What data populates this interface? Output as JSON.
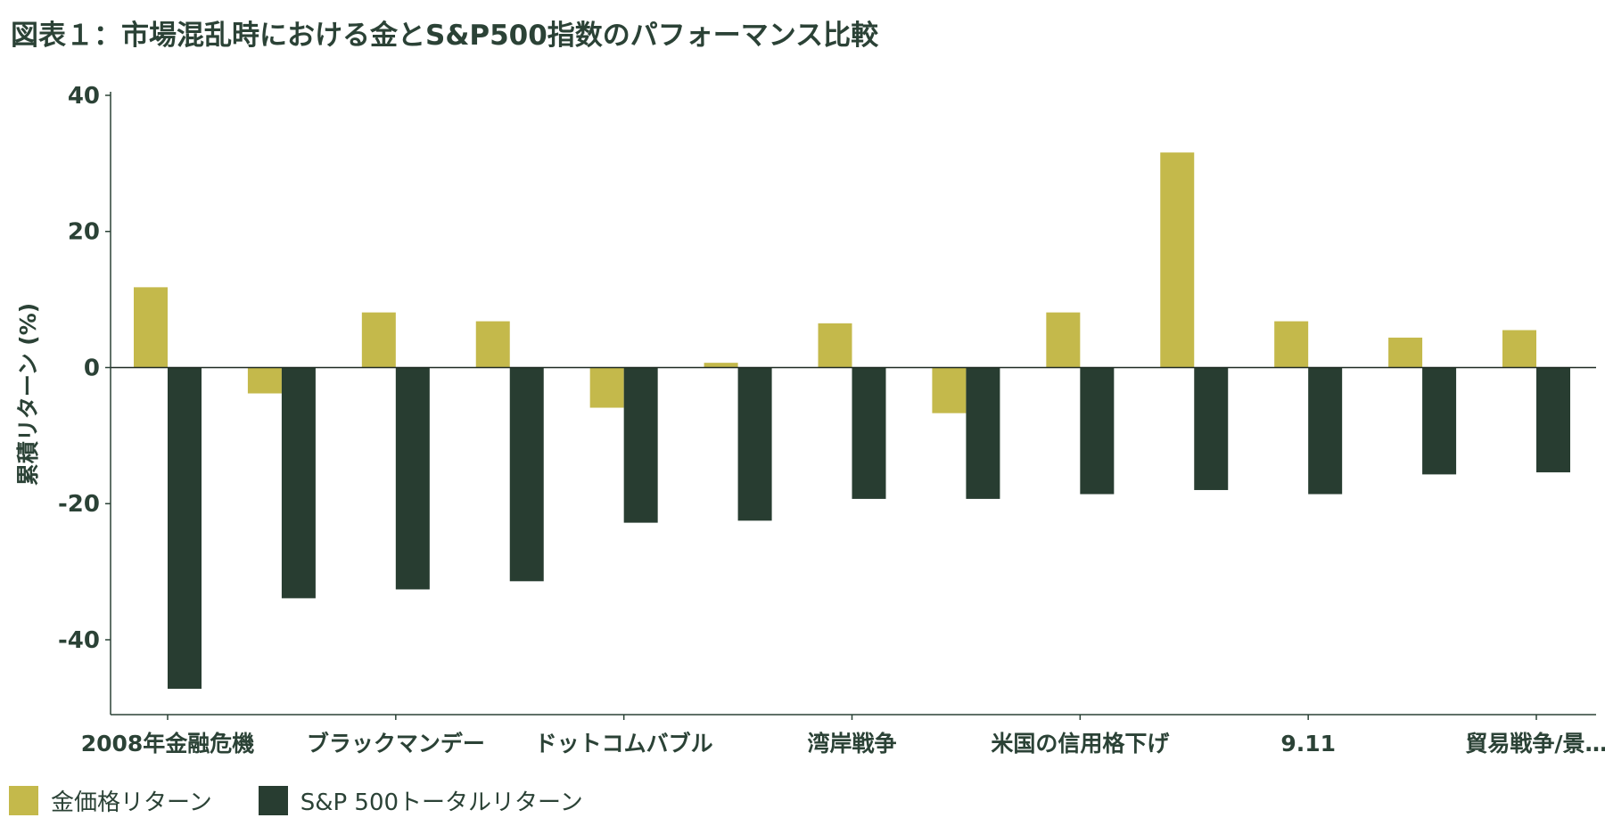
{
  "chart_data": {
    "type": "bar",
    "title": "図表１：市場混乱時における金とS&P500指数のパフォーマンス比較",
    "xlabel": "",
    "ylabel": "累積リターン (%)",
    "ylim": [
      -51,
      40
    ],
    "yticks": [
      40,
      20,
      0,
      -20,
      -40
    ],
    "categories": [
      "2008年金融危機",
      "",
      "ブラックマンデー",
      "",
      "ドットコムバブル",
      "",
      "湾岸戦争",
      "",
      "米国の信用格下げ",
      "",
      "9.11",
      "",
      "貿易戦争/景…"
    ],
    "series": [
      {
        "name": "金価格リターン",
        "color": "#c4b94b",
        "values": [
          11.8,
          -3.8,
          8.1,
          6.8,
          -5.9,
          0.7,
          6.5,
          -6.7,
          8.1,
          31.6,
          6.8,
          4.4,
          5.5
        ]
      },
      {
        "name": "S&P 500トータルリターン",
        "color": "#283d31",
        "values": [
          -47.2,
          -33.9,
          -32.6,
          -31.4,
          -22.8,
          -22.5,
          -19.3,
          -19.3,
          -18.6,
          -18.0,
          -18.6,
          -15.7,
          -15.4
        ]
      }
    ],
    "grid": false,
    "legend_position": "bottom-left"
  }
}
